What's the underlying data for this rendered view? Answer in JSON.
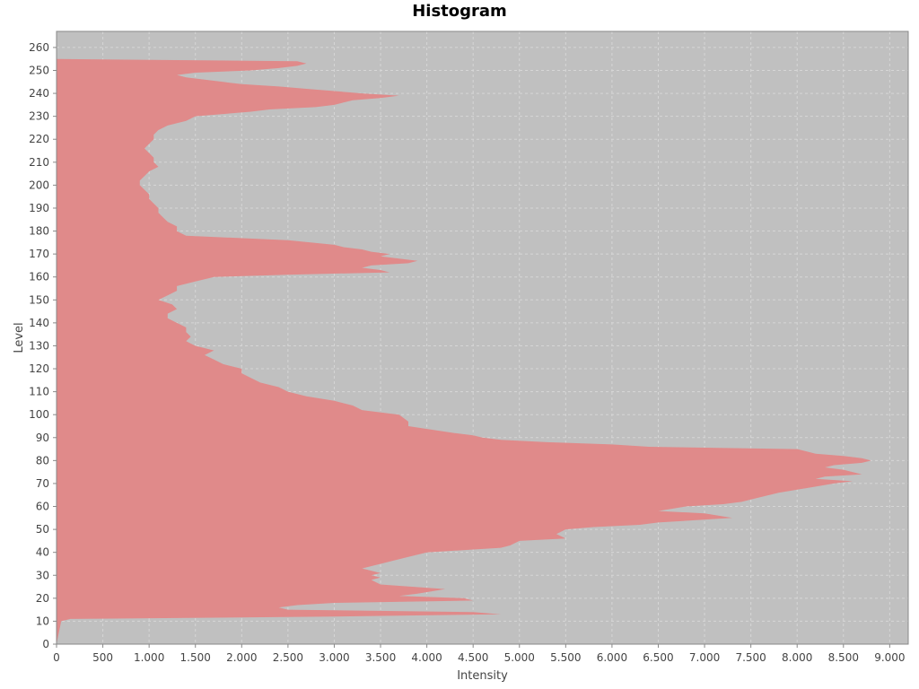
{
  "chart_data": {
    "type": "area",
    "orientation": "horizontal",
    "title": "Histogram",
    "xlabel": "Intensity",
    "ylabel": "Level",
    "xlim": [
      0,
      9200
    ],
    "ylim": [
      0,
      267
    ],
    "x_ticks": [
      "0",
      "500",
      "1.000",
      "1.500",
      "2.000",
      "2.500",
      "3.000",
      "3.500",
      "4.000",
      "4.500",
      "5.000",
      "5.500",
      "6.000",
      "6.500",
      "7.000",
      "7.500",
      "8.000",
      "8.500",
      "9.000"
    ],
    "x_tick_values": [
      0,
      500,
      1000,
      1500,
      2000,
      2500,
      3000,
      3500,
      4000,
      4500,
      5000,
      5500,
      6000,
      6500,
      7000,
      7500,
      8000,
      8500,
      9000
    ],
    "y_ticks": [
      "0",
      "10",
      "20",
      "30",
      "40",
      "50",
      "60",
      "70",
      "80",
      "90",
      "100",
      "110",
      "120",
      "130",
      "140",
      "150",
      "160",
      "170",
      "180",
      "190",
      "200",
      "210",
      "220",
      "230",
      "240",
      "250",
      "260"
    ],
    "y_tick_values": [
      0,
      10,
      20,
      30,
      40,
      50,
      60,
      70,
      80,
      90,
      100,
      110,
      120,
      130,
      140,
      150,
      160,
      170,
      180,
      190,
      200,
      210,
      220,
      230,
      240,
      250,
      260
    ],
    "grid": true,
    "colors": {
      "fill": "#e08a8a",
      "plot_background": "#c0c0c0",
      "grid": "#d6d6d6"
    },
    "series": [
      {
        "levels": [
          0,
          10,
          11,
          12,
          13,
          14,
          15,
          16,
          17,
          18,
          19,
          20,
          21,
          22,
          24,
          26,
          28,
          29,
          30,
          31,
          33,
          35,
          38,
          40,
          42,
          43,
          45,
          46,
          48,
          50,
          51,
          52,
          53,
          55,
          57,
          58,
          60,
          61,
          62,
          64,
          66,
          68,
          70,
          71,
          72,
          73,
          74,
          76,
          77,
          78,
          79,
          80,
          81,
          82,
          83,
          84,
          85,
          86,
          87,
          88,
          89,
          90,
          91,
          92,
          95,
          97,
          100,
          102,
          104,
          106,
          108,
          110,
          112,
          114,
          116,
          118,
          120,
          122,
          124,
          126,
          128,
          130,
          132,
          134,
          136,
          138,
          140,
          142,
          144,
          146,
          148,
          150,
          152,
          154,
          156,
          158,
          160,
          161,
          162,
          163,
          164,
          165,
          166,
          167,
          168,
          169,
          170,
          171,
          172,
          173,
          174,
          176,
          178,
          180,
          182,
          184,
          186,
          188,
          190,
          192,
          194,
          196,
          198,
          200,
          202,
          204,
          206,
          208,
          210,
          212,
          214,
          216,
          218,
          220,
          222,
          224,
          226,
          228,
          230,
          231,
          232,
          233,
          234,
          235,
          236,
          237,
          238,
          239,
          240,
          241,
          242,
          243,
          244,
          245,
          246,
          247,
          248,
          249,
          250,
          251,
          252,
          253,
          254,
          255
        ],
        "intensity": [
          0,
          50,
          150,
          3000,
          4800,
          4500,
          2500,
          2400,
          2600,
          3000,
          4500,
          4400,
          3700,
          3900,
          4200,
          3500,
          3400,
          3500,
          3400,
          3500,
          3300,
          3500,
          3800,
          4000,
          4800,
          4900,
          5000,
          5500,
          5400,
          5500,
          5800,
          6300,
          6500,
          7300,
          7000,
          6500,
          6800,
          7200,
          7400,
          7600,
          7800,
          8100,
          8400,
          8600,
          8200,
          8300,
          8700,
          8500,
          8300,
          8400,
          8700,
          8800,
          8700,
          8500,
          8200,
          8100,
          8000,
          6400,
          6000,
          5300,
          4800,
          4600,
          4500,
          4300,
          3800,
          3800,
          3700,
          3300,
          3200,
          3000,
          2700,
          2500,
          2400,
          2200,
          2100,
          2000,
          2000,
          1800,
          1700,
          1600,
          1700,
          1500,
          1400,
          1450,
          1400,
          1400,
          1300,
          1200,
          1200,
          1300,
          1250,
          1100,
          1200,
          1300,
          1300,
          1500,
          1700,
          2500,
          3600,
          3500,
          3300,
          3400,
          3800,
          3900,
          3700,
          3500,
          3600,
          3400,
          3300,
          3100,
          3000,
          2500,
          1400,
          1300,
          1300,
          1200,
          1150,
          1100,
          1100,
          1050,
          1000,
          1000,
          950,
          900,
          900,
          950,
          1000,
          1100,
          1050,
          1050,
          1000,
          950,
          1000,
          1050,
          1050,
          1100,
          1200,
          1400,
          1500,
          1800,
          2100,
          2300,
          2800,
          3000,
          3100,
          3200,
          3500,
          3700,
          3300,
          3000,
          2700,
          2400,
          2000,
          1800,
          1600,
          1400,
          1300,
          1500,
          2100,
          2400,
          2600,
          2700,
          2600,
          0
        ]
      }
    ]
  }
}
